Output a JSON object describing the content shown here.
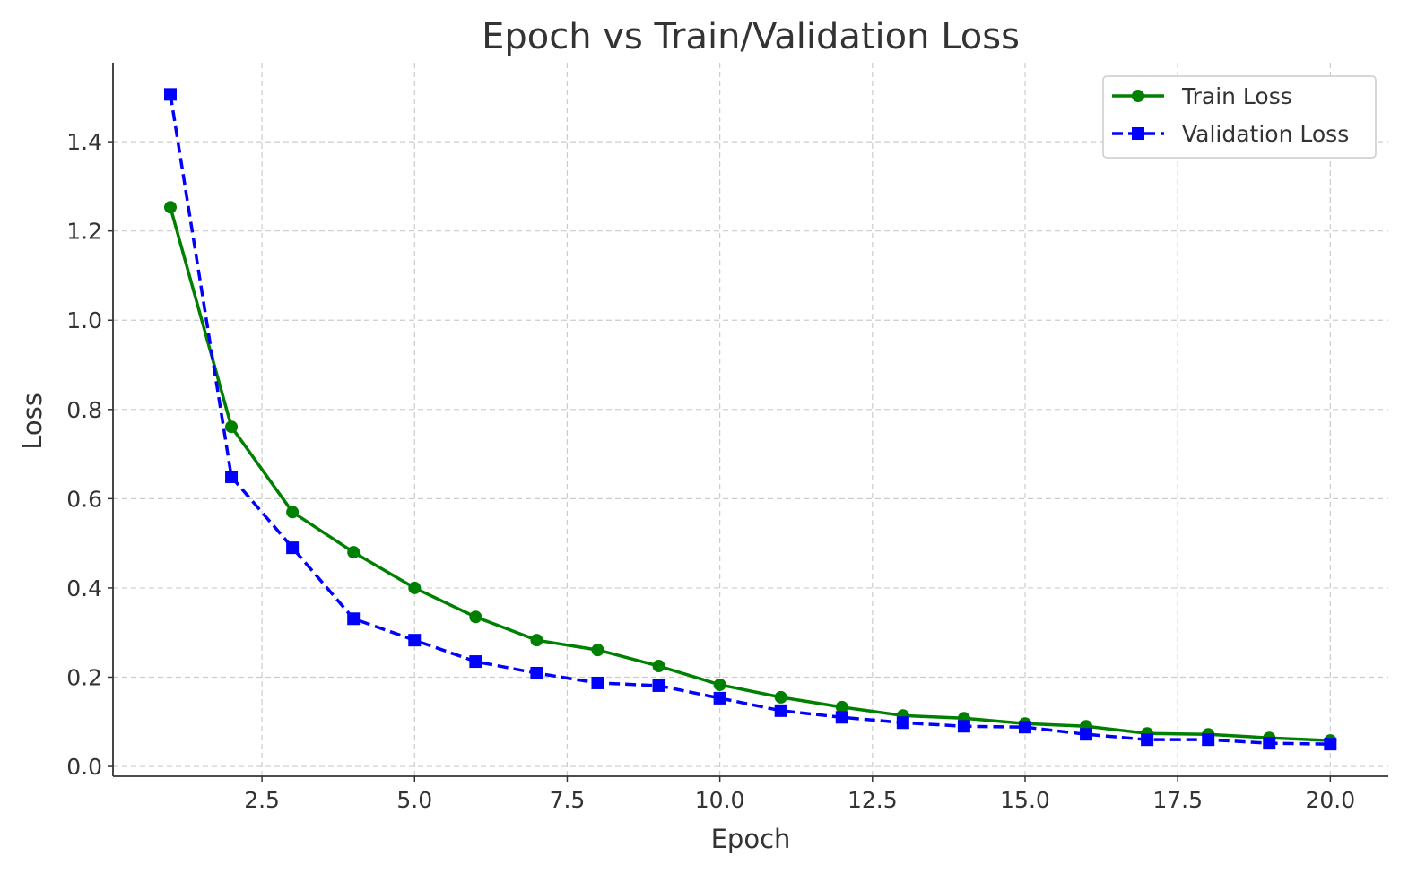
{
  "chart_data": {
    "type": "line",
    "title": "Epoch vs Train/Validation Loss",
    "xlabel": "Epoch",
    "ylabel": "Loss",
    "xlim": [
      0.06,
      20.95
    ],
    "ylim": [
      -0.022,
      1.577
    ],
    "xticks": [
      2.5,
      5.0,
      7.5,
      10.0,
      12.5,
      15.0,
      17.5,
      20.0
    ],
    "xtick_labels": [
      "2.5",
      "5.0",
      "7.5",
      "10.0",
      "12.5",
      "15.0",
      "17.5",
      "20.0"
    ],
    "yticks": [
      0.0,
      0.2,
      0.4,
      0.6,
      0.8,
      1.0,
      1.2,
      1.4
    ],
    "ytick_labels": [
      "0.0",
      "0.2",
      "0.4",
      "0.6",
      "0.8",
      "1.0",
      "1.2",
      "1.4"
    ],
    "grid": true,
    "legend_position": "top-right",
    "x": [
      1,
      2,
      3,
      4,
      5,
      6,
      7,
      8,
      9,
      10,
      11,
      12,
      13,
      14,
      15,
      16,
      17,
      18,
      19,
      20
    ],
    "series": [
      {
        "name": "Train Loss",
        "color": "#008000",
        "style": "solid",
        "marker": "circle",
        "values": [
          1.253,
          0.761,
          0.57,
          0.48,
          0.4,
          0.335,
          0.283,
          0.261,
          0.225,
          0.183,
          0.155,
          0.133,
          0.114,
          0.108,
          0.096,
          0.09,
          0.074,
          0.072,
          0.064,
          0.058
        ]
      },
      {
        "name": "Validation Loss",
        "color": "#0000ff",
        "style": "dashed",
        "marker": "square",
        "values": [
          1.506,
          0.649,
          0.49,
          0.331,
          0.283,
          0.235,
          0.209,
          0.187,
          0.181,
          0.153,
          0.125,
          0.11,
          0.098,
          0.09,
          0.088,
          0.072,
          0.06,
          0.06,
          0.052,
          0.05
        ]
      }
    ]
  }
}
